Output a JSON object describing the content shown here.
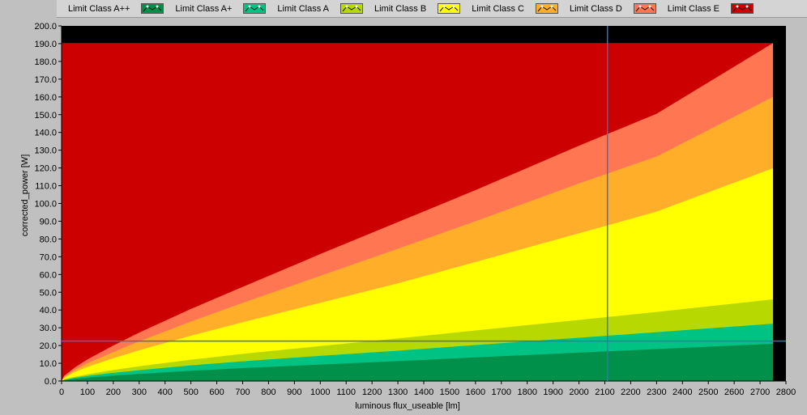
{
  "legend": {
    "items": [
      {
        "label": "Limit Class A++",
        "color": "#00904a"
      },
      {
        "label": "Limit Class A+",
        "color": "#00c383"
      },
      {
        "label": "Limit Class A",
        "color": "#b7d800"
      },
      {
        "label": "Limit Class B",
        "color": "#ffff00"
      },
      {
        "label": "Limit Class C",
        "color": "#ffae2a"
      },
      {
        "label": "Limit Class D",
        "color": "#ff7752"
      },
      {
        "label": "Limit Class E",
        "color": "#cc0000"
      }
    ]
  },
  "chart_data": {
    "type": "area",
    "xlabel": "luminous flux_useable [lm]",
    "ylabel": "corrected_power [W]",
    "xlim": [
      0,
      2800
    ],
    "ylim": [
      0,
      200
    ],
    "x_ticks": [
      0,
      100,
      200,
      300,
      400,
      500,
      600,
      700,
      800,
      900,
      1000,
      1100,
      1200,
      1300,
      1400,
      1500,
      1600,
      1700,
      1800,
      1900,
      2000,
      2100,
      2200,
      2300,
      2400,
      2500,
      2600,
      2700,
      2800
    ],
    "y_ticks": [
      "0.0",
      "10.0",
      "20.0",
      "30.0",
      "40.0",
      "50.0",
      "60.0",
      "70.0",
      "80.0",
      "90.0",
      "100.0",
      "110.0",
      "120.0",
      "130.0",
      "140.0",
      "150.0",
      "160.0",
      "170.0",
      "180.0",
      "190.0",
      "200.0"
    ],
    "x": [
      0,
      10,
      50,
      100,
      200,
      300,
      500,
      700,
      1000,
      1300,
      1600,
      2000,
      2300,
      2750
    ],
    "series": [
      {
        "name": "Limit Class A++",
        "color": "#00904a",
        "values": [
          0,
          0.4,
          1.2,
          1.9,
          3.0,
          4.0,
          5.8,
          7.3,
          9.3,
          11.2,
          13.3,
          16.0,
          18.0,
          21.0
        ]
      },
      {
        "name": "Limit Class A+",
        "color": "#00c383",
        "values": [
          0,
          0.7,
          1.8,
          2.9,
          4.6,
          6.1,
          8.8,
          11.1,
          14.2,
          17.1,
          20.3,
          24.4,
          27.5,
          32.3
        ]
      },
      {
        "name": "Limit Class A",
        "color": "#b7d800",
        "values": [
          0,
          0.9,
          2.4,
          3.8,
          6.2,
          8.3,
          12.0,
          15.3,
          19.7,
          24.0,
          28.5,
          34.4,
          38.9,
          46.0
        ]
      },
      {
        "name": "Limit Class B",
        "color": "#ffff00",
        "values": [
          0,
          1.9,
          5.0,
          8.0,
          12.8,
          17.3,
          25.5,
          33.1,
          44.0,
          55.0,
          67.0,
          83.2,
          95.4,
          119.8
        ]
      },
      {
        "name": "Limit Class C",
        "color": "#ffae2a",
        "values": [
          0,
          2.3,
          6.2,
          10.0,
          16.3,
          22.4,
          33.5,
          44.0,
          59.2,
          74.5,
          90.0,
          111.3,
          126.4,
          160.0
        ]
      },
      {
        "name": "Limit Class D",
        "color": "#ff7752",
        "values": [
          0,
          2.9,
          7.5,
          12.2,
          20.0,
          27.3,
          40.6,
          53.0,
          71.5,
          89.5,
          107.5,
          132.5,
          150.5,
          190.3
        ]
      },
      {
        "name": "Limit Class E",
        "color": "#cc0000",
        "values": [
          190.3,
          190.3,
          190.3,
          190.3,
          190.3,
          190.3,
          190.3,
          190.3,
          190.3,
          190.3,
          190.3,
          190.3,
          190.3,
          190.3
        ]
      }
    ],
    "cursor": {
      "x": 2110,
      "y": 22.5,
      "color": "#3b6fbf"
    },
    "plot_background": "#000000"
  }
}
